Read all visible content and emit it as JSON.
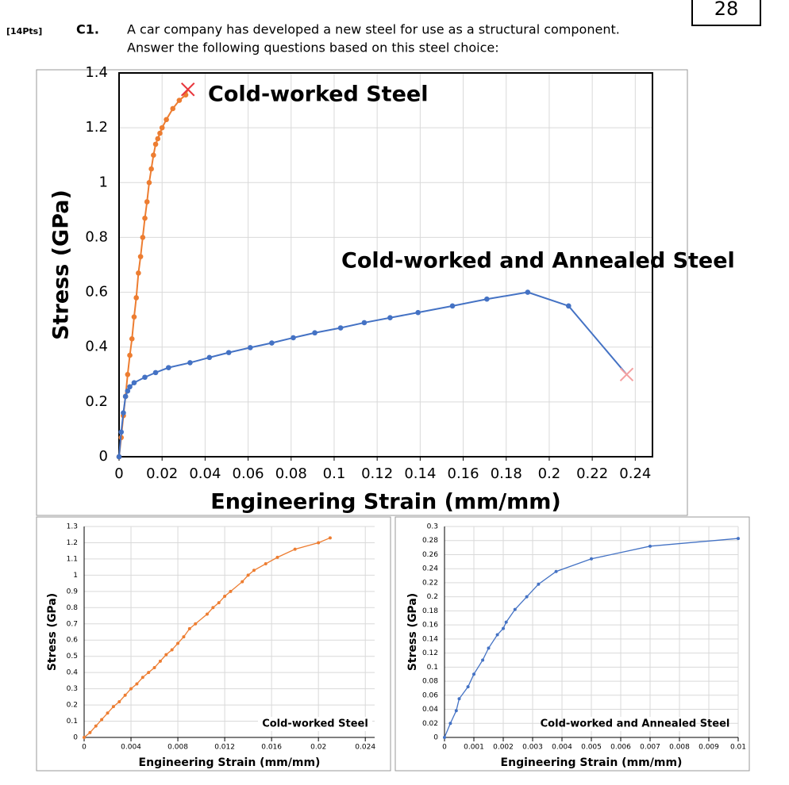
{
  "header": {
    "points": "[14Pts]",
    "number": "C1.",
    "lines": [
      "A car company has developed a new steel for use as a structural component.",
      "Answer the following questions based on this steel choice:"
    ],
    "score": "28"
  },
  "chart_data": [
    {
      "type": "line",
      "x_label": "Engineering Strain (mm/mm)",
      "y_label": "Stress (GPa)",
      "xlim": [
        0,
        0.248
      ],
      "ylim": [
        0,
        1.4
      ],
      "xticks": [
        0,
        0.02,
        0.04,
        0.06,
        0.08,
        0.1,
        0.12,
        0.14,
        0.16,
        0.18,
        0.2,
        0.22,
        0.24
      ],
      "yticks": [
        0,
        0.2,
        0.4,
        0.6,
        0.8,
        1,
        1.2,
        1.4
      ],
      "grid": true,
      "series": [
        {
          "name": "Cold-worked Steel",
          "color": "#ed7d31",
          "x": [
            0,
            0.001,
            0.002,
            0.003,
            0.004,
            0.005,
            0.006,
            0.007,
            0.008,
            0.009,
            0.01,
            0.011,
            0.012,
            0.013,
            0.014,
            0.015,
            0.016,
            0.017,
            0.018,
            0.019,
            0.02,
            0.022,
            0.025,
            0.028,
            0.031
          ],
          "values": [
            0,
            0.07,
            0.15,
            0.22,
            0.3,
            0.37,
            0.43,
            0.51,
            0.58,
            0.67,
            0.73,
            0.8,
            0.87,
            0.93,
            1.0,
            1.05,
            1.1,
            1.14,
            1.16,
            1.18,
            1.2,
            1.23,
            1.27,
            1.3,
            1.32
          ],
          "fracture": {
            "x": 0.032,
            "y": 1.34
          }
        },
        {
          "name": "Cold-worked and Annealed Steel",
          "color": "#4472c4",
          "x": [
            0,
            0.001,
            0.002,
            0.003,
            0.004,
            0.005,
            0.007,
            0.012,
            0.017,
            0.023,
            0.033,
            0.042,
            0.051,
            0.061,
            0.071,
            0.081,
            0.091,
            0.103,
            0.114,
            0.126,
            0.139,
            0.155,
            0.171,
            0.19,
            0.209
          ],
          "values": [
            0,
            0.09,
            0.16,
            0.22,
            0.24,
            0.255,
            0.27,
            0.29,
            0.307,
            0.325,
            0.343,
            0.362,
            0.38,
            0.398,
            0.415,
            0.434,
            0.452,
            0.47,
            0.489,
            0.507,
            0.526,
            0.55,
            0.575,
            0.6,
            0.55
          ],
          "fracture": {
            "x": 0.236,
            "y": 0.3
          }
        }
      ]
    },
    {
      "type": "line",
      "x_label": "Engineering Strain (mm/mm)",
      "y_label": "Stress (GPa)",
      "xlim": [
        0,
        0.0248
      ],
      "ylim": [
        0,
        1.3
      ],
      "xticks": [
        0,
        0.004,
        0.008,
        0.012,
        0.016,
        0.02,
        0.024
      ],
      "yticks": [
        0,
        0.1,
        0.2,
        0.3,
        0.4,
        0.5,
        0.6,
        0.7,
        0.8,
        0.9,
        1,
        1.1,
        1.2,
        1.3
      ],
      "grid": true,
      "series": [
        {
          "name": "Cold-worked Steel",
          "color": "#ed7d31",
          "x": [
            0,
            0.0005,
            0.001,
            0.0015,
            0.002,
            0.0025,
            0.003,
            0.0035,
            0.004,
            0.0045,
            0.005,
            0.0055,
            0.006,
            0.0065,
            0.007,
            0.0075,
            0.008,
            0.0085,
            0.009,
            0.0095,
            0.0105,
            0.011,
            0.0115,
            0.012,
            0.0125,
            0.0135,
            0.014,
            0.0145,
            0.0155,
            0.0165,
            0.018,
            0.02,
            0.021
          ],
          "values": [
            0,
            0.03,
            0.07,
            0.11,
            0.15,
            0.19,
            0.22,
            0.26,
            0.3,
            0.33,
            0.37,
            0.4,
            0.43,
            0.47,
            0.51,
            0.54,
            0.58,
            0.62,
            0.67,
            0.7,
            0.76,
            0.8,
            0.83,
            0.87,
            0.9,
            0.96,
            1.0,
            1.03,
            1.07,
            1.11,
            1.16,
            1.2,
            1.23
          ]
        }
      ]
    },
    {
      "type": "line",
      "x_label": "Engineering Strain (mm/mm)",
      "y_label": "Stress (GPa)",
      "xlim": [
        0,
        0.01
      ],
      "ylim": [
        0,
        0.3
      ],
      "xticks": [
        0,
        0.001,
        0.002,
        0.003,
        0.004,
        0.005,
        0.006,
        0.007,
        0.008,
        0.009,
        0.01
      ],
      "yticks": [
        0,
        0.02,
        0.04,
        0.06,
        0.08,
        0.1,
        0.12,
        0.14,
        0.16,
        0.18,
        0.2,
        0.22,
        0.24,
        0.26,
        0.28,
        0.3
      ],
      "grid": true,
      "series": [
        {
          "name": "Cold-worked and Annealed Steel",
          "color": "#4472c4",
          "x": [
            0,
            0.0002,
            0.0004,
            0.0005,
            0.0008,
            0.001,
            0.0013,
            0.0015,
            0.0018,
            0.002,
            0.0021,
            0.0024,
            0.0028,
            0.0032,
            0.0038,
            0.005,
            0.007,
            0.01
          ],
          "values": [
            0,
            0.02,
            0.038,
            0.055,
            0.072,
            0.09,
            0.11,
            0.127,
            0.146,
            0.155,
            0.164,
            0.182,
            0.2,
            0.218,
            0.236,
            0.254,
            0.272,
            0.283
          ]
        }
      ]
    }
  ]
}
